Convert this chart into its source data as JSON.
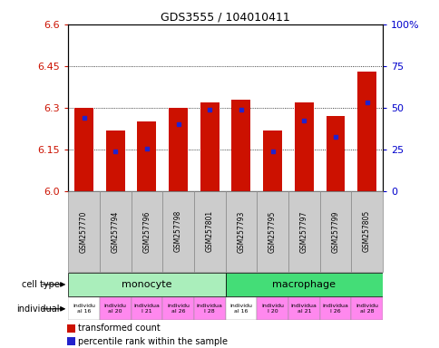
{
  "title": "GDS3555 / 104010411",
  "samples": [
    "GSM257770",
    "GSM257794",
    "GSM257796",
    "GSM257798",
    "GSM257801",
    "GSM257793",
    "GSM257795",
    "GSM257797",
    "GSM257799",
    "GSM257805"
  ],
  "red_values": [
    6.3,
    6.22,
    6.25,
    6.3,
    6.32,
    6.33,
    6.22,
    6.32,
    6.27,
    6.43
  ],
  "blue_values": [
    6.265,
    6.145,
    6.155,
    6.24,
    6.295,
    6.295,
    6.145,
    6.255,
    6.195,
    6.32
  ],
  "ymin": 6.0,
  "ymax": 6.6,
  "yticks_left": [
    6.0,
    6.15,
    6.3,
    6.45,
    6.6
  ],
  "yticks_right_vals": [
    0,
    25,
    50,
    75,
    100
  ],
  "yticks_right_labels": [
    "0",
    "25",
    "50",
    "75",
    "100%"
  ],
  "bar_color": "#cc1100",
  "dot_color": "#2222cc",
  "monocyte_color": "#aaeebb",
  "macrophage_color": "#44dd77",
  "indiv_white": "#ffffff",
  "indiv_pink": "#ff88ee",
  "sample_box_color": "#cccccc",
  "legend_red": "transformed count",
  "legend_blue": "percentile rank within the sample",
  "bar_width": 0.6,
  "left_label_color": "#cc1100",
  "right_label_color": "#0000cc",
  "indiv_labels": [
    "individu\nal 16",
    "individu\nal 20",
    "individua\nl 21",
    "individu\nal 26",
    "individua\nl 28",
    "individu\nal 16",
    "individu\nl 20",
    "individua\nal 21",
    "individua\nl 26",
    "individu\nal 28"
  ],
  "indiv_colors": [
    "#ffffff",
    "#ff88ee",
    "#ff88ee",
    "#ff88ee",
    "#ff88ee",
    "#ffffff",
    "#ff88ee",
    "#ff88ee",
    "#ff88ee",
    "#ff88ee"
  ]
}
